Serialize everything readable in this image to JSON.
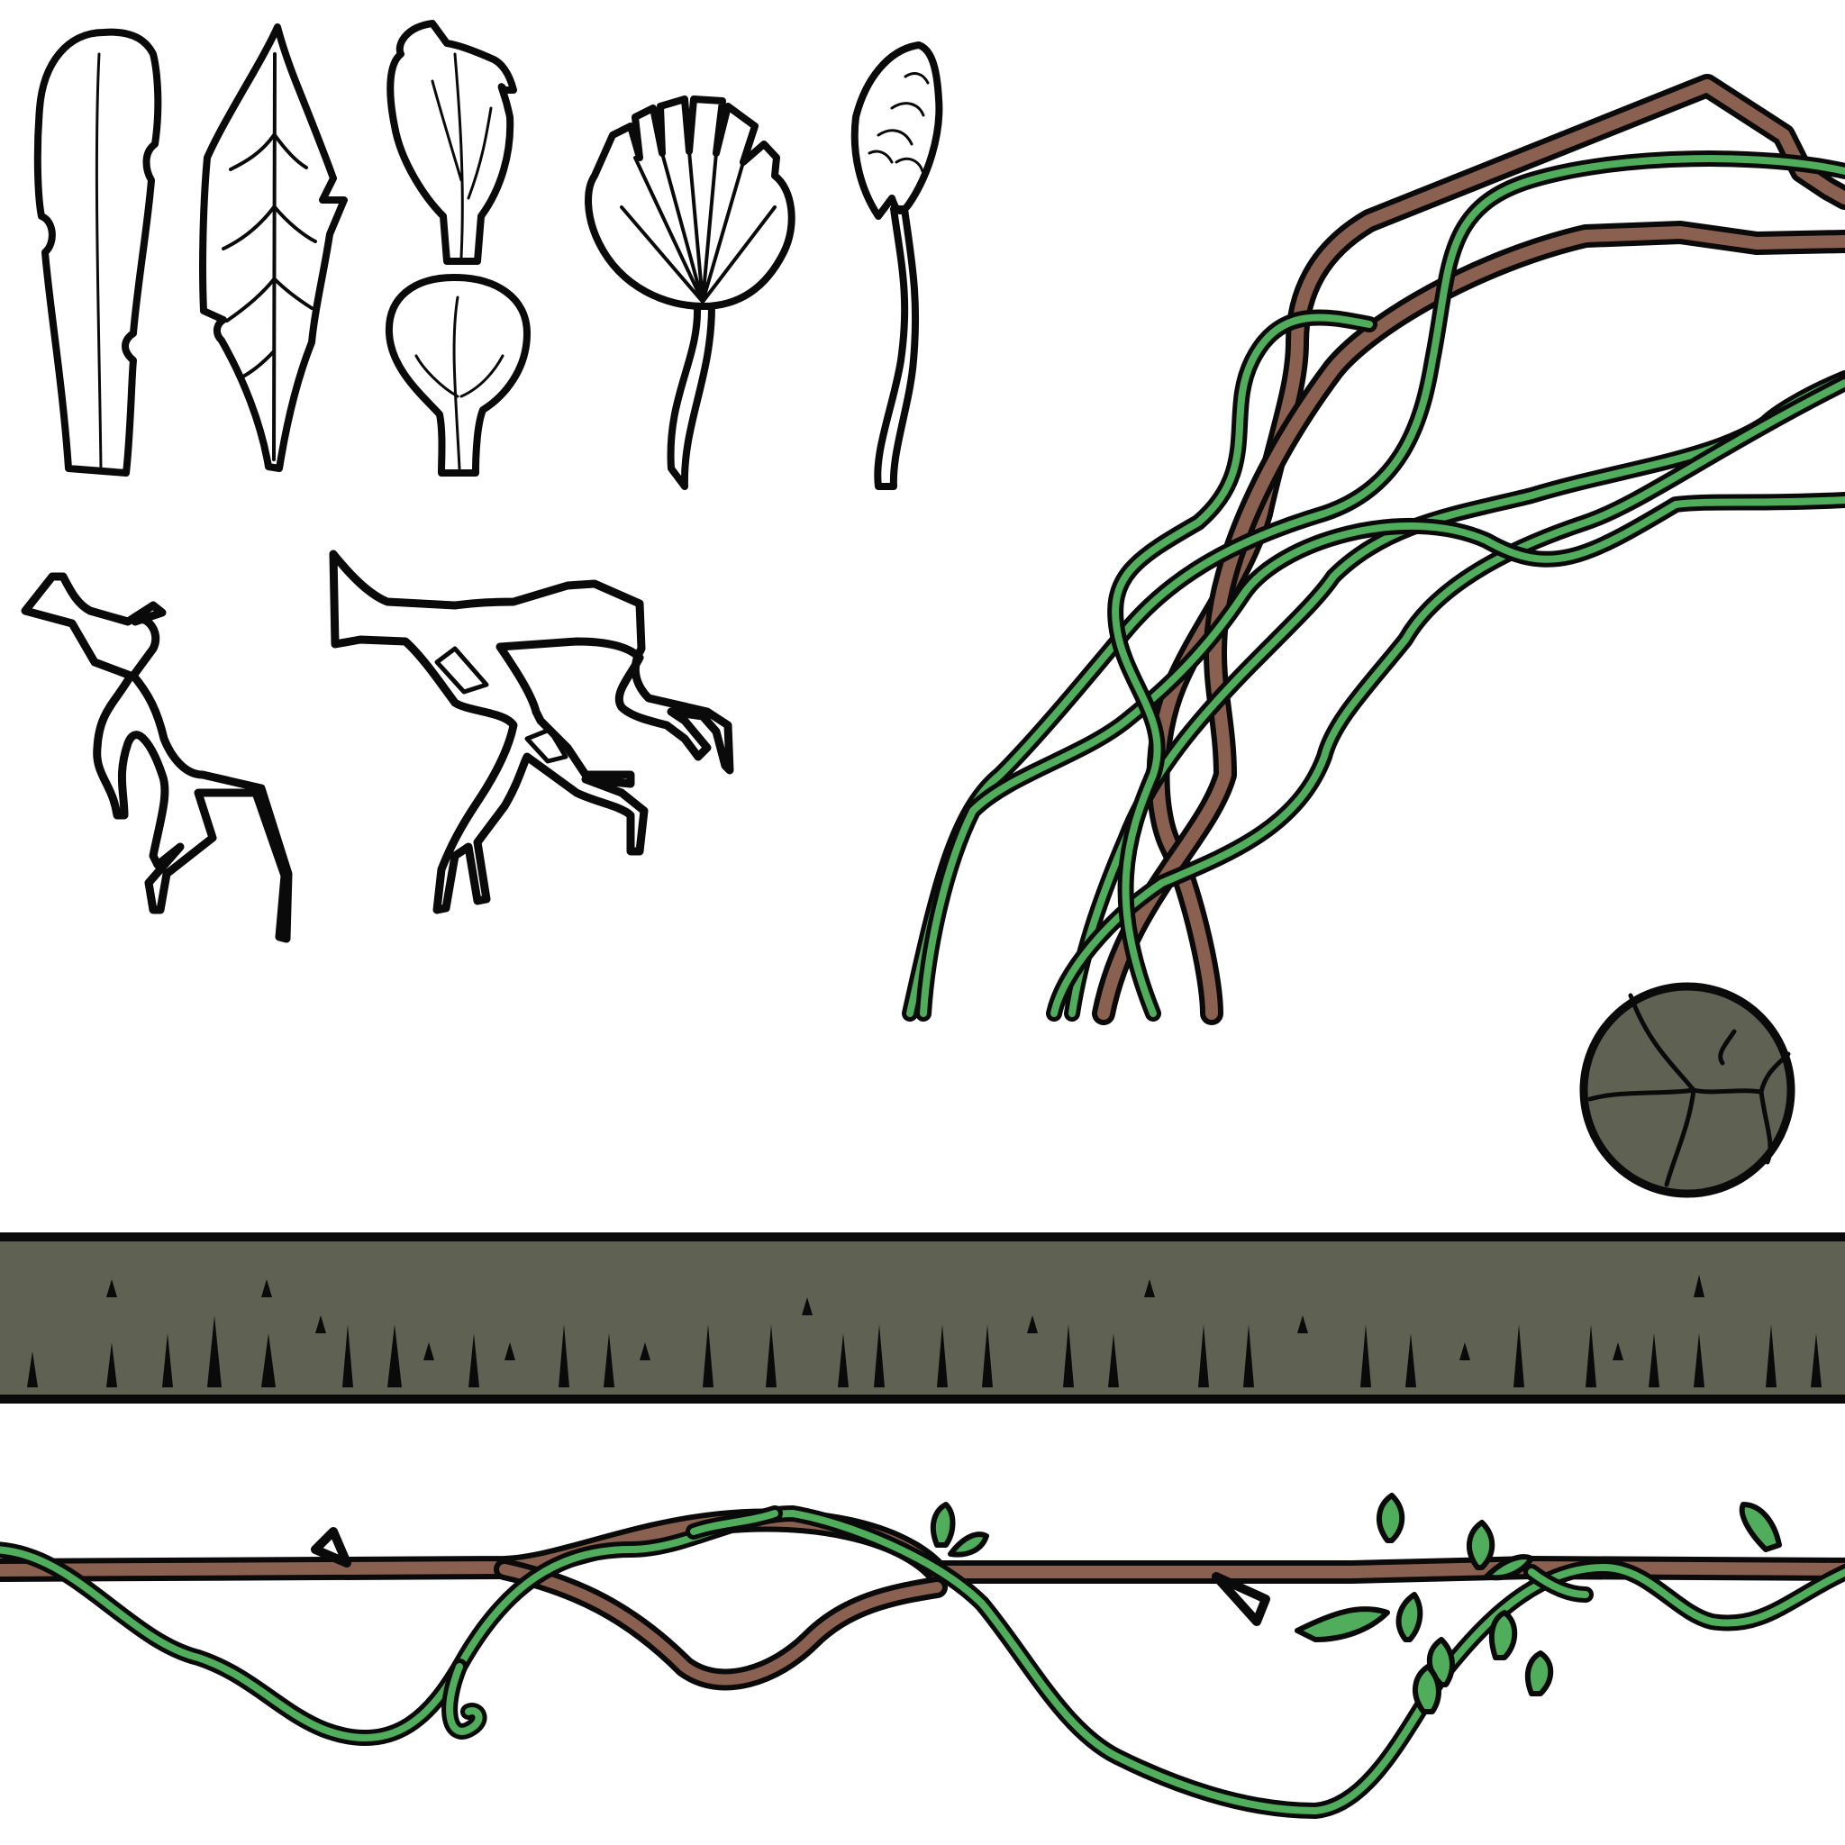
{
  "sheet": {
    "kind": "2D game asset sprite sheet (jungle foliage)",
    "background": "#ffffff"
  },
  "colors": {
    "leaf_green": "#4fad5b",
    "bark_brown": "#8a6050",
    "stone_gray": "#5f6153",
    "outline": "#0a0a0a"
  },
  "assets": {
    "leaves": [
      {
        "name": "leaf-elongated-notched",
        "icon": "leaf-icon"
      },
      {
        "name": "leaf-serrated-pointed",
        "icon": "leaf-icon"
      },
      {
        "name": "leaf-round-small-top",
        "icon": "leaf-icon"
      },
      {
        "name": "leaf-round-bulb-bottom",
        "icon": "leaf-icon"
      },
      {
        "name": "leaf-fan-palm",
        "icon": "palm-leaf-icon"
      },
      {
        "name": "leaf-scaled-sprout",
        "icon": "sprout-icon"
      }
    ],
    "roots": [
      {
        "name": "root-cluster-small",
        "icon": "root-icon"
      },
      {
        "name": "root-cluster-large",
        "icon": "root-icon"
      }
    ],
    "hanging_vines": {
      "name": "hanging-vine-bundle",
      "strands_green": 4,
      "strands_brown": 2
    },
    "stone_ball": {
      "name": "cracked-stone-ball",
      "icon": "stone-icon"
    },
    "ground_strip": {
      "name": "stone-ground-strip",
      "tileable": true
    },
    "branch_vine": {
      "name": "horizontal-branch-with-vines",
      "tileable": true
    }
  }
}
